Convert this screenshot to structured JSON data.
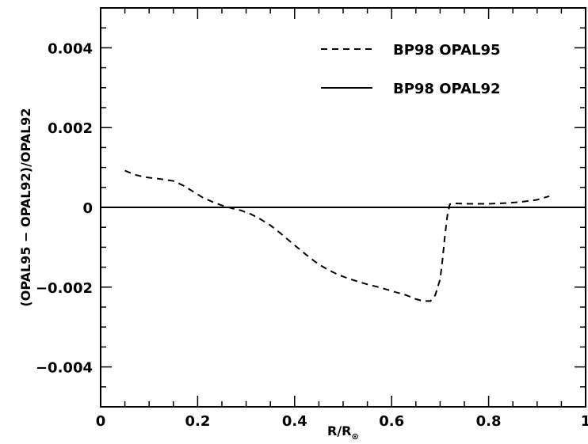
{
  "chart_data": {
    "type": "line",
    "xlabel": "R/R",
    "xlabel_subscript": "⊙",
    "ylabel": "(OPAL95 − OPAL92)/OPAL92",
    "xlim": [
      0,
      1
    ],
    "ylim": [
      -0.005,
      0.005
    ],
    "xticks": [
      0,
      0.2,
      0.4,
      0.6,
      0.8,
      1
    ],
    "xtick_labels": [
      "0",
      "0.2",
      "0.4",
      "0.6",
      "0.8",
      "1"
    ],
    "yticks": [
      -0.004,
      -0.002,
      0,
      0.002,
      0.004
    ],
    "ytick_labels": [
      "−0.004",
      "−0.002",
      "0",
      "0.002",
      "0.004"
    ],
    "grid": false,
    "legend_position": "top-right",
    "series": [
      {
        "name": "BP98 OPAL95",
        "style": "dashed",
        "x": [
          0.05,
          0.07,
          0.09,
          0.11,
          0.13,
          0.15,
          0.17,
          0.19,
          0.21,
          0.23,
          0.25,
          0.27,
          0.29,
          0.31,
          0.33,
          0.35,
          0.37,
          0.39,
          0.41,
          0.43,
          0.45,
          0.47,
          0.49,
          0.51,
          0.53,
          0.55,
          0.57,
          0.59,
          0.61,
          0.63,
          0.65,
          0.665,
          0.68,
          0.69,
          0.7,
          0.705,
          0.71,
          0.715,
          0.72,
          0.73,
          0.76,
          0.8,
          0.84,
          0.87,
          0.9,
          0.925
        ],
        "y": [
          0.00092,
          0.00082,
          0.00076,
          0.00073,
          0.0007,
          0.00066,
          0.00055,
          0.0004,
          0.00025,
          0.00014,
          5e-05,
          -2e-05,
          -8e-05,
          -0.00017,
          -0.0003,
          -0.00045,
          -0.00064,
          -0.00085,
          -0.00105,
          -0.00125,
          -0.00143,
          -0.00157,
          -0.00169,
          -0.00178,
          -0.00186,
          -0.00193,
          -0.00199,
          -0.00206,
          -0.00213,
          -0.0022,
          -0.0023,
          -0.00235,
          -0.00235,
          -0.0022,
          -0.0018,
          -0.0013,
          -0.0007,
          -0.0002,
          8e-05,
          0.0001,
          9e-05,
          9e-05,
          0.00011,
          0.00014,
          0.00019,
          0.00028
        ]
      },
      {
        "name": "BP98 OPAL92",
        "style": "solid",
        "x": [
          0,
          1
        ],
        "y": [
          0,
          0
        ]
      }
    ]
  }
}
